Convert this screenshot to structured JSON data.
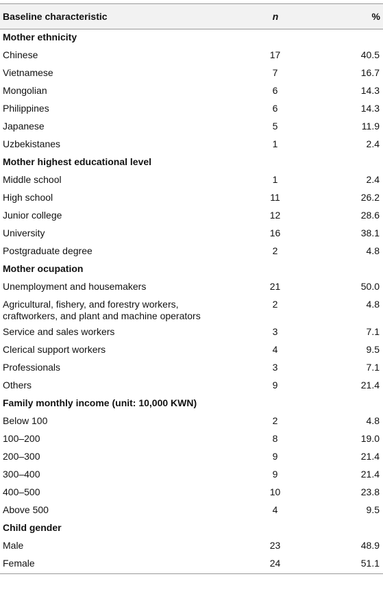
{
  "table": {
    "header": [
      "Baseline characteristic",
      "n",
      "%"
    ],
    "sections": [
      {
        "title": "Mother ethnicity",
        "rows": [
          [
            "Chinese",
            "17",
            "40.5"
          ],
          [
            "Vietnamese",
            "7",
            "16.7"
          ],
          [
            "Mongolian",
            "6",
            "14.3"
          ],
          [
            "Philippines",
            "6",
            "14.3"
          ],
          [
            "Japanese",
            "5",
            "11.9"
          ],
          [
            "Uzbekistanes",
            "1",
            "2.4"
          ]
        ]
      },
      {
        "title": "Mother highest educational level",
        "rows": [
          [
            "Middle school",
            "1",
            "2.4"
          ],
          [
            "High school",
            "11",
            "26.2"
          ],
          [
            "Junior college",
            "12",
            "28.6"
          ],
          [
            "University",
            "16",
            "38.1"
          ],
          [
            "Postgraduate degree",
            "2",
            "4.8"
          ]
        ]
      },
      {
        "title": "Mother ocupation",
        "rows": [
          [
            "Unemployment and housemakers",
            "21",
            "50.0"
          ],
          [
            "Agricultural, fishery, and forestry workers, craftworkers, and plant and machine operators",
            "2",
            "4.8"
          ],
          [
            "Service and sales workers",
            "3",
            "7.1"
          ],
          [
            "Clerical support workers",
            "4",
            "9.5"
          ],
          [
            "Professionals",
            "3",
            "7.1"
          ],
          [
            "Others",
            "9",
            "21.4"
          ]
        ]
      },
      {
        "title": "Family monthly income (unit: 10,000 KWN)",
        "rows": [
          [
            "Below 100",
            "2",
            "4.8"
          ],
          [
            "100–200",
            "8",
            "19.0"
          ],
          [
            "200–300",
            "9",
            "21.4"
          ],
          [
            "300–400",
            "9",
            "21.4"
          ],
          [
            "400–500",
            "10",
            "23.8"
          ],
          [
            "Above 500",
            "4",
            "9.5"
          ]
        ]
      },
      {
        "title": "Child gender",
        "rows": [
          [
            "Male",
            "23",
            "48.9"
          ],
          [
            "Female",
            "24",
            "51.1"
          ]
        ]
      }
    ]
  }
}
